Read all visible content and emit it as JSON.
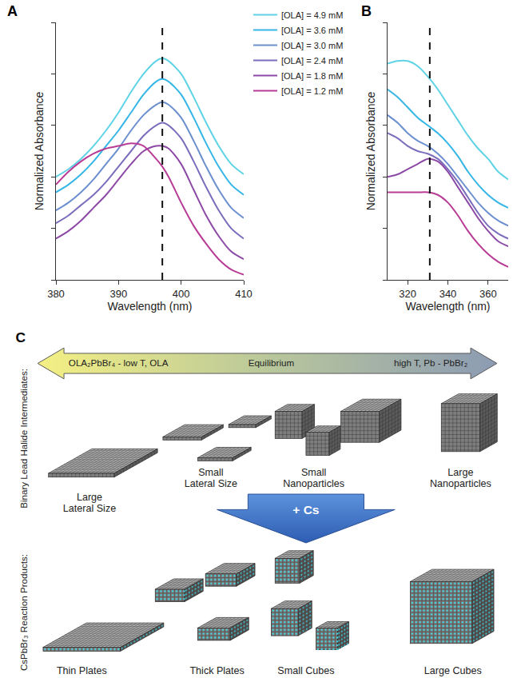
{
  "chart_data": [
    {
      "type": "line",
      "panel_label": "A",
      "x_label": "Wavelength (nm)",
      "y_label": "Normalized Absorbance",
      "x": [
        380,
        382,
        384,
        386,
        388,
        390,
        392,
        394,
        396,
        397,
        398,
        400,
        402,
        404,
        406,
        408,
        410
      ],
      "series": [
        {
          "name": "[OLA] = 4.9 mM",
          "color": "#5fd3e6",
          "values": [
            0.4,
            0.43,
            0.47,
            0.52,
            0.58,
            0.65,
            0.73,
            0.8,
            0.85,
            0.86,
            0.85,
            0.8,
            0.71,
            0.61,
            0.52,
            0.45,
            0.41
          ]
        },
        {
          "name": "[OLA] = 3.6 mM",
          "color": "#35b6e6",
          "values": [
            0.34,
            0.37,
            0.41,
            0.46,
            0.52,
            0.58,
            0.65,
            0.72,
            0.77,
            0.78,
            0.77,
            0.72,
            0.63,
            0.53,
            0.44,
            0.37,
            0.33
          ]
        },
        {
          "name": "[OLA] = 3.0 mM",
          "color": "#6b8fcf",
          "values": [
            0.27,
            0.3,
            0.34,
            0.39,
            0.45,
            0.51,
            0.58,
            0.64,
            0.68,
            0.69,
            0.68,
            0.63,
            0.54,
            0.44,
            0.35,
            0.28,
            0.24
          ]
        },
        {
          "name": "[OLA] = 2.4 mM",
          "color": "#7b6cbc",
          "values": [
            0.22,
            0.25,
            0.29,
            0.33,
            0.38,
            0.44,
            0.5,
            0.56,
            0.6,
            0.61,
            0.6,
            0.55,
            0.46,
            0.36,
            0.27,
            0.2,
            0.16
          ]
        },
        {
          "name": "[OLA] = 1.8 mM",
          "color": "#8c4aa6",
          "values": [
            0.16,
            0.19,
            0.23,
            0.28,
            0.33,
            0.39,
            0.45,
            0.5,
            0.52,
            0.52,
            0.51,
            0.45,
            0.35,
            0.25,
            0.17,
            0.11,
            0.08
          ]
        },
        {
          "name": "[OLA] = 1.2 mM",
          "color": "#b83c96",
          "values": [
            0.37,
            0.42,
            0.46,
            0.49,
            0.51,
            0.52,
            0.53,
            0.52,
            0.47,
            0.44,
            0.4,
            0.3,
            0.21,
            0.14,
            0.08,
            0.04,
            0.02
          ]
        }
      ],
      "reference_x": 397,
      "xlim": [
        380,
        410
      ],
      "xticks": [
        380,
        390,
        400,
        410
      ],
      "ylim": [
        0,
        1
      ],
      "yticks": [
        0,
        0.2,
        0.4,
        0.6,
        0.8,
        1
      ],
      "tick_labels": "x",
      "grid": false,
      "legend": "right"
    },
    {
      "type": "line",
      "panel_label": "B",
      "x_label": "Wavelength (nm)",
      "y_label": "Normalized Absorbance",
      "x": [
        310,
        315,
        320,
        325,
        330,
        335,
        340,
        345,
        350,
        355,
        360,
        365,
        370
      ],
      "series": [
        {
          "name": "[OLA] = 4.9 mM",
          "color": "#5fd3e6",
          "values": [
            0.84,
            0.85,
            0.85,
            0.83,
            0.79,
            0.74,
            0.68,
            0.62,
            0.56,
            0.51,
            0.47,
            0.42,
            0.39
          ]
        },
        {
          "name": "[OLA] = 3.6 mM",
          "color": "#35b6e6",
          "values": [
            0.74,
            0.71,
            0.67,
            0.63,
            0.6,
            0.57,
            0.53,
            0.48,
            0.42,
            0.37,
            0.33,
            0.3,
            0.28
          ]
        },
        {
          "name": "[OLA] = 3.0 mM",
          "color": "#6b8fcf",
          "values": [
            0.64,
            0.61,
            0.57,
            0.54,
            0.52,
            0.49,
            0.45,
            0.4,
            0.35,
            0.3,
            0.26,
            0.23,
            0.21
          ]
        },
        {
          "name": "[OLA] = 2.4 mM",
          "color": "#7b6cbc",
          "values": [
            0.57,
            0.55,
            0.52,
            0.5,
            0.49,
            0.47,
            0.43,
            0.38,
            0.32,
            0.26,
            0.21,
            0.18,
            0.16
          ]
        },
        {
          "name": "[OLA] = 1.8 mM",
          "color": "#8c4aa6",
          "values": [
            0.4,
            0.41,
            0.43,
            0.45,
            0.47,
            0.46,
            0.42,
            0.36,
            0.3,
            0.24,
            0.19,
            0.15,
            0.13
          ]
        },
        {
          "name": "[OLA] = 1.2 mM",
          "color": "#b83c96",
          "values": [
            0.34,
            0.34,
            0.34,
            0.34,
            0.34,
            0.33,
            0.3,
            0.25,
            0.19,
            0.14,
            0.1,
            0.07,
            0.05
          ]
        }
      ],
      "reference_x": 331,
      "xlim": [
        310,
        370
      ],
      "xticks": [
        320,
        340,
        360
      ],
      "ylim": [
        0,
        1
      ],
      "yticks": [
        0,
        0.2,
        0.4,
        0.6,
        0.8,
        1
      ],
      "tick_labels": "x",
      "grid": false
    }
  ],
  "diagram": {
    "panel_label": "C",
    "arrow": {
      "left": "OLA₂PbBr₄ - low T, OLA",
      "center": "Equilibrium",
      "right": "high T, Pb - PbBr₂"
    },
    "step": "+ Cs",
    "rows": [
      {
        "label": "Binary Lead Halide Intermediates:",
        "items": [
          "Large Lateral Size",
          "Small Lateral Size",
          "Small Nanoparticles",
          "Large Nanoparticles"
        ]
      },
      {
        "label": "CsPbBr₃ Reaction Products:",
        "items": [
          "Thin Plates",
          "Thick Plates",
          "Small Cubes",
          "Large Cubes"
        ]
      }
    ]
  }
}
